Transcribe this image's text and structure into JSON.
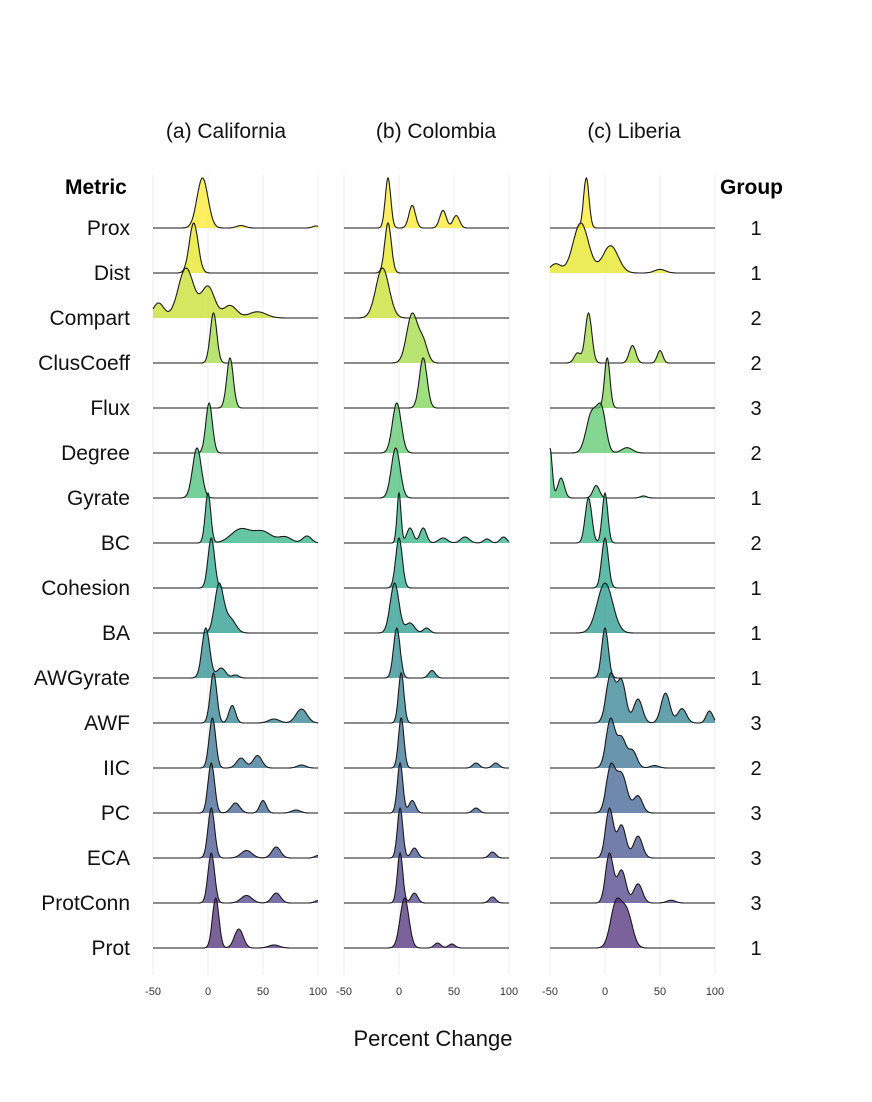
{
  "chart_data": {
    "type": "ridgeline",
    "xlabel": "Percent Change",
    "metric_header": "Metric",
    "group_header": "Group",
    "metrics": [
      "Prox",
      "Dist",
      "Compart",
      "ClusCoeff",
      "Flux",
      "Degree",
      "Gyrate",
      "BC",
      "Cohesion",
      "BA",
      "AWGyrate",
      "AWF",
      "IIC",
      "PC",
      "ECA",
      "ProtConn",
      "Prot"
    ],
    "groups": [
      "1",
      "1",
      "2",
      "2",
      "3",
      "2",
      "1",
      "2",
      "1",
      "1",
      "1",
      "3",
      "2",
      "3",
      "3",
      "3",
      "1"
    ],
    "colors": [
      "#fde725",
      "#e3e418",
      "#c2df23",
      "#9fda3a",
      "#7ad151",
      "#56c667",
      "#3fbc73",
      "#2ab07f",
      "#20a386",
      "#1e9489",
      "#23888e",
      "#297b8e",
      "#2f6c8e",
      "#365c8d",
      "#3f4c8a",
      "#463a85",
      "#482575"
    ],
    "xticks": [
      -50,
      0,
      50,
      100
    ],
    "xlim": [
      -50,
      100
    ],
    "panels": [
      {
        "title": "(a) California",
        "rows": [
          {
            "metric": "Prox",
            "peaks": [
              [
                -5,
                1,
                5
              ],
              [
                30,
                0.05,
                4
              ],
              [
                98,
                0.04,
                3
              ]
            ]
          },
          {
            "metric": "Dist",
            "peaks": [
              [
                -13,
                1,
                4
              ]
            ]
          },
          {
            "metric": "Compart",
            "peaks": [
              [
                -45,
                0.12,
                5
              ],
              [
                -20,
                0.4,
                7
              ],
              [
                0,
                0.25,
                6
              ],
              [
                20,
                0.1,
                6
              ],
              [
                45,
                0.05,
                8
              ]
            ]
          },
          {
            "metric": "ClusCoeff",
            "peaks": [
              [
                5,
                1,
                3
              ]
            ]
          },
          {
            "metric": "Flux",
            "peaks": [
              [
                20,
                1,
                3
              ]
            ]
          },
          {
            "metric": "Degree",
            "peaks": [
              [
                1,
                1,
                3
              ]
            ]
          },
          {
            "metric": "Gyrate",
            "peaks": [
              [
                -10,
                1,
                4
              ]
            ]
          },
          {
            "metric": "BC",
            "peaks": [
              [
                0,
                1,
                2.5
              ],
              [
                30,
                0.28,
                9
              ],
              [
                50,
                0.22,
                8
              ],
              [
                70,
                0.12,
                6
              ],
              [
                90,
                0.14,
                4
              ]
            ]
          },
          {
            "metric": "Cohesion",
            "peaks": [
              [
                3,
                1,
                3
              ]
            ]
          },
          {
            "metric": "BA",
            "peaks": [
              [
                10,
                1,
                4
              ],
              [
                20,
                0.3,
                5
              ]
            ]
          },
          {
            "metric": "AWGyrate",
            "peaks": [
              [
                -2,
                1,
                3.5
              ],
              [
                12,
                0.2,
                4
              ],
              [
                25,
                0.06,
                3
              ]
            ]
          },
          {
            "metric": "AWF",
            "peaks": [
              [
                5,
                1,
                3
              ],
              [
                22,
                0.35,
                3
              ],
              [
                60,
                0.08,
                5
              ],
              [
                85,
                0.28,
                5
              ]
            ]
          },
          {
            "metric": "IIC",
            "peaks": [
              [
                4,
                1,
                3
              ],
              [
                30,
                0.2,
                4
              ],
              [
                45,
                0.25,
                4
              ],
              [
                85,
                0.06,
                4
              ]
            ]
          },
          {
            "metric": "PC",
            "peaks": [
              [
                3,
                1,
                3
              ],
              [
                25,
                0.2,
                4
              ],
              [
                50,
                0.25,
                3
              ],
              [
                80,
                0.06,
                4
              ]
            ]
          },
          {
            "metric": "ECA",
            "peaks": [
              [
                3,
                1,
                3
              ],
              [
                35,
                0.15,
                5
              ],
              [
                62,
                0.22,
                4
              ],
              [
                100,
                0.05,
                3
              ]
            ]
          },
          {
            "metric": "ProtConn",
            "peaks": [
              [
                3,
                1,
                3
              ],
              [
                35,
                0.15,
                5
              ],
              [
                62,
                0.2,
                4
              ],
              [
                100,
                0.05,
                3
              ]
            ]
          },
          {
            "metric": "Prot",
            "peaks": [
              [
                7,
                1,
                3
              ],
              [
                28,
                0.38,
                4
              ],
              [
                60,
                0.06,
                5
              ]
            ]
          }
        ]
      },
      {
        "title": "(b) Colombia",
        "rows": [
          {
            "metric": "Prox",
            "peaks": [
              [
                -10,
                1,
                2.5
              ],
              [
                12,
                0.45,
                3
              ],
              [
                40,
                0.35,
                3
              ],
              [
                52,
                0.25,
                3
              ]
            ]
          },
          {
            "metric": "Dist",
            "peaks": [
              [
                -10,
                1,
                3
              ]
            ]
          },
          {
            "metric": "Compart",
            "peaks": [
              [
                -15,
                1,
                6
              ]
            ]
          },
          {
            "metric": "ClusCoeff",
            "peaks": [
              [
                12,
                1,
                5
              ],
              [
                22,
                0.4,
                4
              ]
            ]
          },
          {
            "metric": "Flux",
            "peaks": [
              [
                22,
                1,
                3.5
              ]
            ]
          },
          {
            "metric": "Degree",
            "peaks": [
              [
                -2,
                1,
                4
              ]
            ]
          },
          {
            "metric": "Gyrate",
            "peaks": [
              [
                -3,
                1,
                4
              ]
            ]
          },
          {
            "metric": "BC",
            "peaks": [
              [
                0,
                1,
                1.8
              ],
              [
                10,
                0.3,
                3
              ],
              [
                22,
                0.3,
                3
              ],
              [
                40,
                0.1,
                4
              ],
              [
                60,
                0.12,
                4
              ],
              [
                80,
                0.08,
                3
              ],
              [
                95,
                0.12,
                3
              ]
            ]
          },
          {
            "metric": "Cohesion",
            "peaks": [
              [
                0,
                1,
                3
              ]
            ]
          },
          {
            "metric": "BA",
            "peaks": [
              [
                -4,
                1,
                4
              ],
              [
                10,
                0.2,
                4
              ],
              [
                25,
                0.1,
                3
              ]
            ]
          },
          {
            "metric": "AWGyrate",
            "peaks": [
              [
                -2,
                1,
                3
              ],
              [
                30,
                0.15,
                3
              ]
            ]
          },
          {
            "metric": "AWF",
            "peaks": [
              [
                2,
                1,
                2.5
              ]
            ]
          },
          {
            "metric": "IIC",
            "peaks": [
              [
                2,
                1,
                2.5
              ],
              [
                70,
                0.1,
                3
              ],
              [
                88,
                0.1,
                3
              ]
            ]
          },
          {
            "metric": "PC",
            "peaks": [
              [
                1,
                1,
                2.5
              ],
              [
                12,
                0.25,
                3
              ],
              [
                70,
                0.1,
                3
              ]
            ]
          },
          {
            "metric": "ECA",
            "peaks": [
              [
                1,
                1,
                2.5
              ],
              [
                14,
                0.2,
                3
              ],
              [
                85,
                0.12,
                3
              ]
            ]
          },
          {
            "metric": "ProtConn",
            "peaks": [
              [
                1,
                1,
                2.5
              ],
              [
                14,
                0.2,
                3
              ],
              [
                85,
                0.12,
                3
              ]
            ]
          },
          {
            "metric": "Prot",
            "peaks": [
              [
                5,
                1,
                4
              ],
              [
                35,
                0.1,
                3
              ],
              [
                48,
                0.08,
                3
              ]
            ]
          }
        ]
      },
      {
        "title": "(c) Liberia",
        "rows": [
          {
            "metric": "Prox",
            "peaks": [
              [
                -17,
                1,
                2.5
              ]
            ]
          },
          {
            "metric": "Dist",
            "peaks": [
              [
                -45,
                0.1,
                5
              ],
              [
                -22,
                0.55,
                7
              ],
              [
                5,
                0.3,
                7
              ],
              [
                50,
                0.04,
                5
              ]
            ]
          },
          {
            "metric": "Compart",
            "peaks": []
          },
          {
            "metric": "ClusCoeff",
            "peaks": [
              [
                -15,
                1,
                3
              ],
              [
                -25,
                0.2,
                3
              ],
              [
                25,
                0.35,
                3
              ],
              [
                50,
                0.25,
                2.5
              ]
            ]
          },
          {
            "metric": "Flux",
            "peaks": [
              [
                2,
                1,
                2.5
              ]
            ]
          },
          {
            "metric": "Degree",
            "peaks": [
              [
                -12,
                0.75,
                5
              ],
              [
                -3,
                0.75,
                4
              ],
              [
                20,
                0.1,
                5
              ]
            ]
          },
          {
            "metric": "Gyrate",
            "peaks": [
              [
                -50,
                1,
                2
              ],
              [
                -40,
                0.4,
                3
              ],
              [
                -8,
                0.25,
                3
              ],
              [
                35,
                0.04,
                3
              ]
            ]
          },
          {
            "metric": "BC",
            "peaks": [
              [
                -15,
                0.9,
                3
              ],
              [
                0,
                1,
                2.5
              ]
            ]
          },
          {
            "metric": "Cohesion",
            "peaks": [
              [
                0,
                1,
                3
              ]
            ]
          },
          {
            "metric": "BA",
            "peaks": [
              [
                0,
                1,
                7
              ]
            ]
          },
          {
            "metric": "AWGyrate",
            "peaks": [
              [
                0,
                1,
                3
              ]
            ]
          },
          {
            "metric": "AWF",
            "peaks": [
              [
                5,
                0.4,
                4
              ],
              [
                15,
                0.35,
                4
              ],
              [
                30,
                0.2,
                4
              ],
              [
                55,
                0.25,
                4
              ],
              [
                70,
                0.12,
                4
              ],
              [
                95,
                0.1,
                3
              ]
            ]
          },
          {
            "metric": "IIC",
            "peaks": [
              [
                5,
                1,
                4
              ],
              [
                15,
                0.6,
                4
              ],
              [
                25,
                0.35,
                4
              ],
              [
                45,
                0.05,
                4
              ]
            ]
          },
          {
            "metric": "PC",
            "peaks": [
              [
                5,
                0.9,
                4
              ],
              [
                15,
                0.8,
                5
              ],
              [
                30,
                0.35,
                4
              ]
            ]
          },
          {
            "metric": "ECA",
            "peaks": [
              [
                4,
                0.9,
                3.5
              ],
              [
                15,
                0.6,
                4
              ],
              [
                30,
                0.4,
                4
              ]
            ]
          },
          {
            "metric": "ProtConn",
            "peaks": [
              [
                4,
                0.9,
                3.5
              ],
              [
                15,
                0.6,
                4
              ],
              [
                30,
                0.35,
                4
              ],
              [
                60,
                0.05,
                4
              ]
            ]
          },
          {
            "metric": "Prot",
            "peaks": [
              [
                10,
                0.9,
                5
              ],
              [
                20,
                0.7,
                5
              ]
            ]
          }
        ]
      }
    ]
  }
}
